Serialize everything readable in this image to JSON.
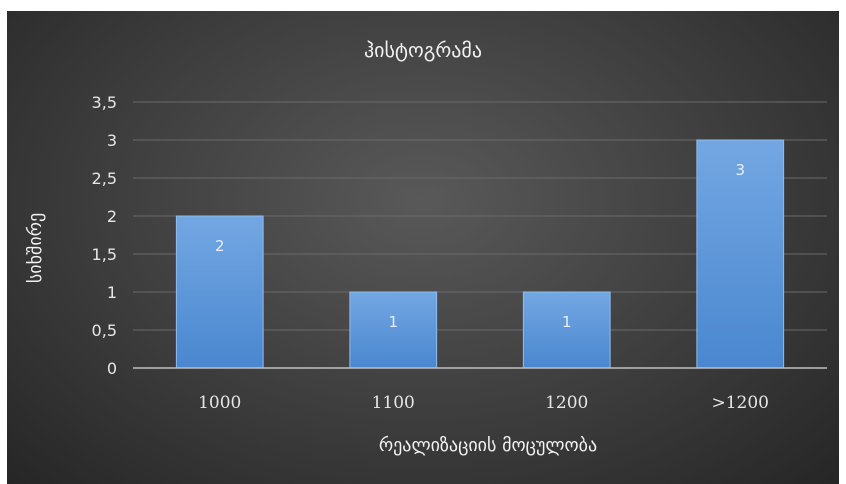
{
  "colors": {
    "bar_top": "#73a7e3",
    "bar_bottom": "#4a87cf",
    "bar_edge": "#8fbdee"
  },
  "chart_data": {
    "type": "bar",
    "title": "ჰისტოგრამა",
    "xlabel": "რეალიზაციის მოცულობა",
    "ylabel": "სიხშირე",
    "categories": [
      "1000",
      "1100",
      "1200",
      ">1200"
    ],
    "values": [
      2,
      1,
      1,
      3
    ],
    "data_labels": [
      "2",
      "1",
      "1",
      "3"
    ],
    "ylim": [
      0,
      3.5
    ],
    "yticks": [
      0,
      0.5,
      1,
      1.5,
      2,
      2.5,
      3,
      3.5
    ],
    "ytick_labels": [
      "0",
      "0,5",
      "1",
      "1,5",
      "2",
      "2,5",
      "3",
      "3,5"
    ],
    "grid": true,
    "legend": "none"
  }
}
